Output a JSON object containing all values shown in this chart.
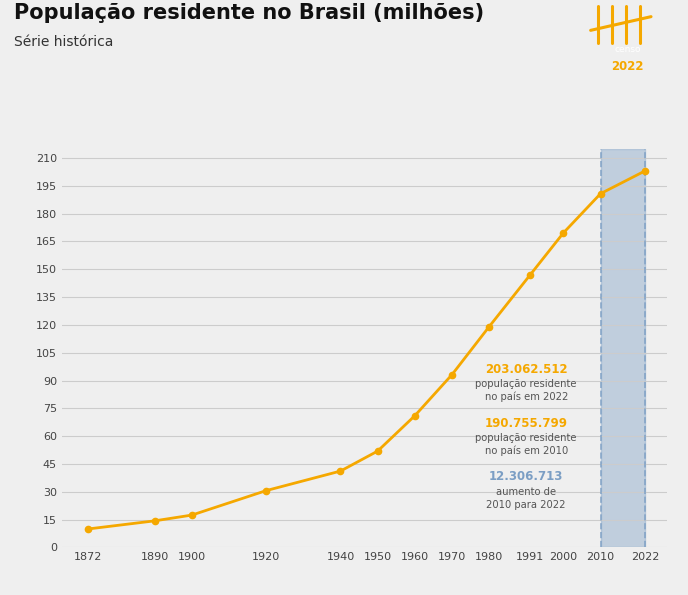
{
  "years": [
    1872,
    1890,
    1900,
    1920,
    1940,
    1950,
    1960,
    1970,
    1980,
    1991,
    2000,
    2010,
    2022
  ],
  "population": [
    9.93,
    14.33,
    17.44,
    30.64,
    41.17,
    51.94,
    70.99,
    93.13,
    119.0,
    146.82,
    169.59,
    190.76,
    203.06
  ],
  "line_color": "#F5A800",
  "marker_color": "#F5A800",
  "bg_color": "#EFEFEF",
  "plot_bg_color": "#EFEFEF",
  "title": "População residente no Brasil (milhões)",
  "subtitle": "Série histórica",
  "title_fontsize": 15,
  "subtitle_fontsize": 10,
  "ylabel_ticks": [
    0,
    15,
    30,
    45,
    60,
    75,
    90,
    105,
    120,
    135,
    150,
    165,
    180,
    195,
    210
  ],
  "grid_color": "#CCCCCC",
  "highlight_x_start": 2010,
  "highlight_x_end": 2022,
  "highlight_color": "#7B9EC4",
  "highlight_alpha": 0.4,
  "dashed_line_color": "#7B9EC4",
  "annotation_2022_number": "203.062.512",
  "annotation_2022_label1": "população residente",
  "annotation_2022_label2": "no país em 2022",
  "annotation_2022_color": "#F5A800",
  "annotation_2010_number": "190.755.799",
  "annotation_2010_label1": "população residente",
  "annotation_2010_label2": "no país em 2010",
  "annotation_2010_color": "#F5A800",
  "annotation_diff_number": "12.306.713",
  "annotation_diff_label1": "aumento de",
  "annotation_diff_label2": "2010 para 2022",
  "annotation_diff_color": "#7B9EC4",
  "annotation_text_color": "#555555",
  "logo_bg_color": "#1A3A6B",
  "logo_text_color": "#F5A800",
  "ylim": [
    0,
    215
  ],
  "xlim_left": 1865,
  "xlim_right": 2028
}
